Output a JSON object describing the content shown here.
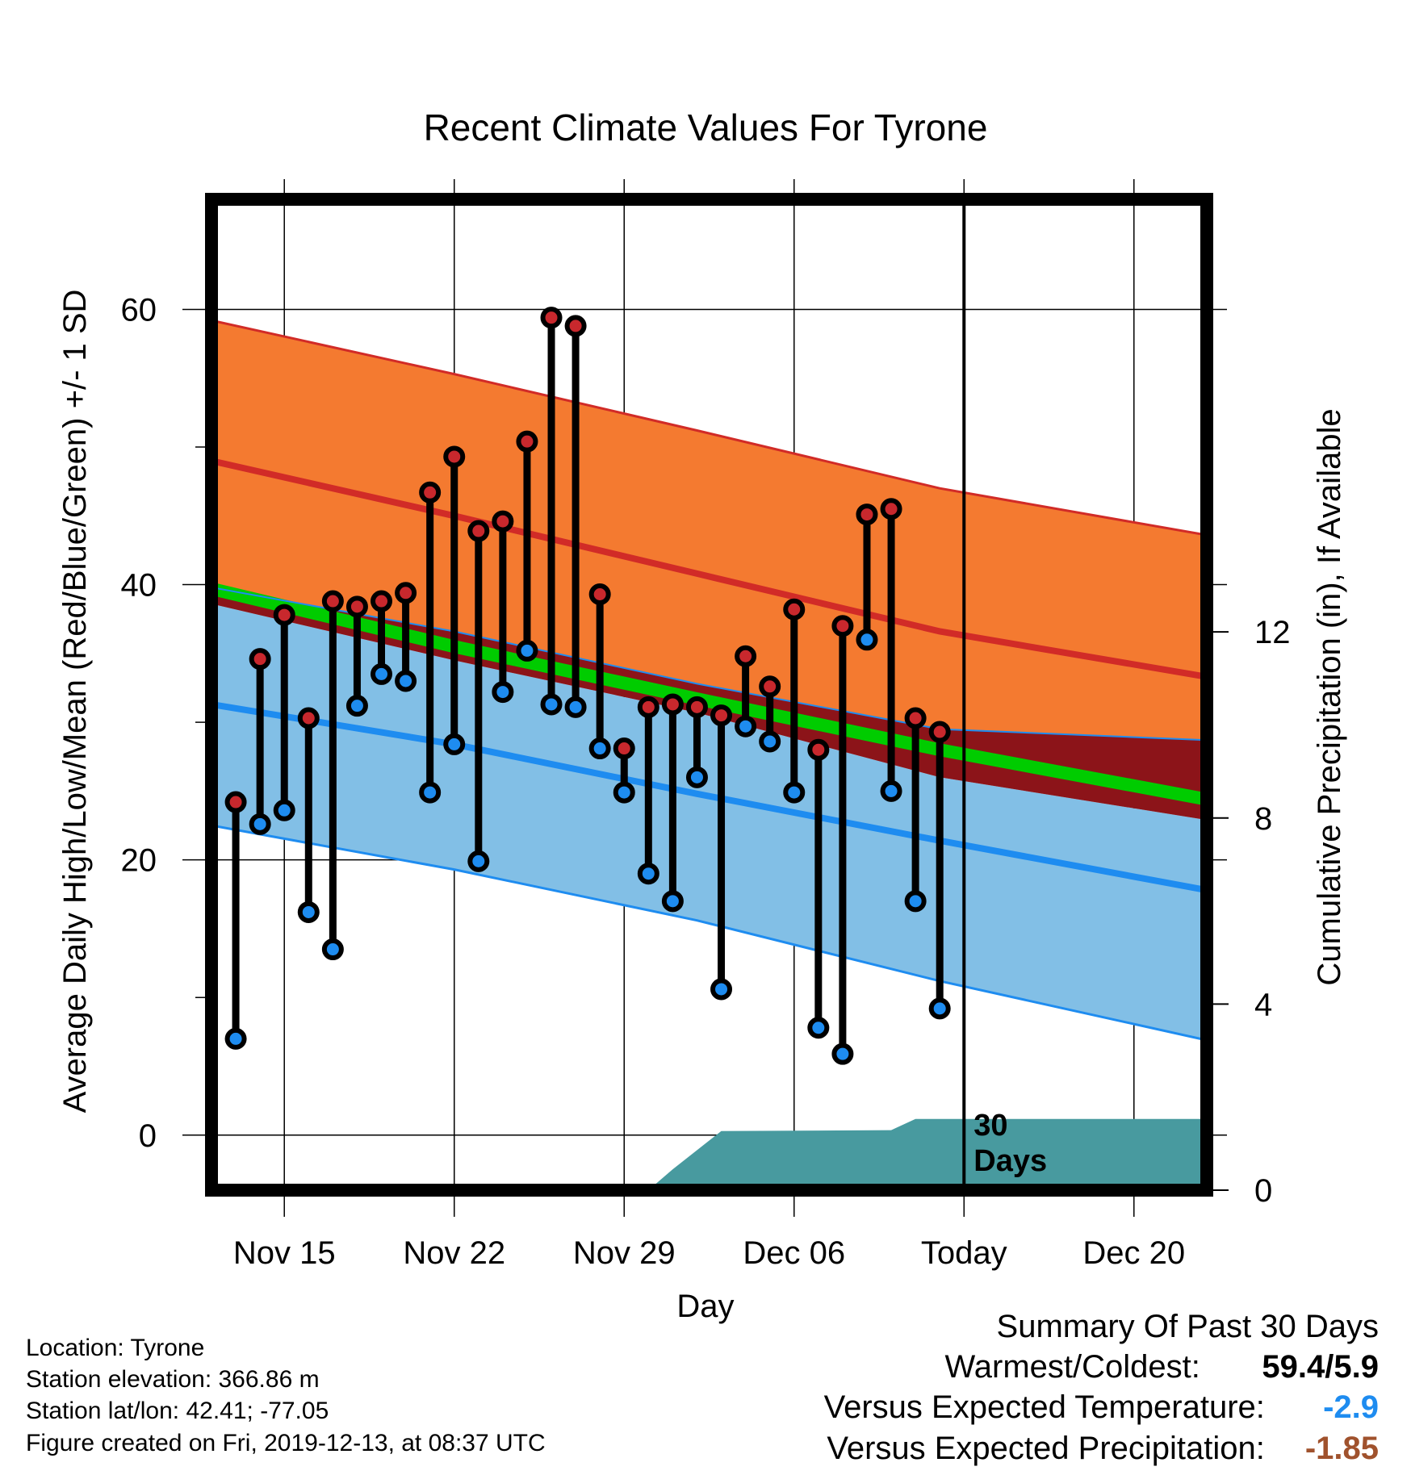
{
  "chart_data": {
    "type": "line",
    "title": "Recent Climate Values For Tyrone",
    "xlabel": "Day",
    "ylabel": "Average Daily High/Low/Mean (Red/Blue/Green) +/- 1 SD",
    "y2label": "Cumulative Precipitation (in), If Available",
    "x_range": [
      "2019-11-12",
      "2019-12-23"
    ],
    "ylim": [
      -4,
      68
    ],
    "y2lim": [
      0,
      21.3
    ],
    "x_ticks": [
      {
        "date": "2019-11-15",
        "label": "Nov 15"
      },
      {
        "date": "2019-11-22",
        "label": "Nov 22"
      },
      {
        "date": "2019-11-29",
        "label": "Nov 29"
      },
      {
        "date": "2019-12-06",
        "label": "Dec 06"
      },
      {
        "date": "2019-12-13",
        "label": "Today"
      },
      {
        "date": "2019-12-20",
        "label": "Dec 20"
      }
    ],
    "y_ticks": [
      0,
      20,
      40,
      60
    ],
    "y_minor_ticks": [
      10,
      30,
      50
    ],
    "y2_ticks": [
      0,
      4,
      8,
      12
    ],
    "grid": true,
    "today_marker": {
      "date": "2019-12-13",
      "label_line1": "30",
      "label_line2": "Days"
    },
    "normals": {
      "dates": [
        "2019-11-12",
        "2019-11-22",
        "2019-12-02",
        "2019-12-12",
        "2019-12-23"
      ],
      "high_mean": [
        49.0,
        45.0,
        40.8,
        36.6,
        33.3
      ],
      "high_sd_upper": [
        59.2,
        55.3,
        51.2,
        47.0,
        43.6
      ],
      "high_sd_lower": [
        39.8,
        36.6,
        32.8,
        29.5,
        28.7
      ],
      "avg_mean": [
        39.7,
        35.5,
        31.7,
        28.0,
        24.4
      ],
      "low_mean": [
        31.3,
        28.4,
        24.8,
        21.4,
        17.8
      ],
      "low_sd_upper": [
        38.6,
        34.5,
        30.7,
        26.0,
        22.9
      ],
      "low_sd_lower": [
        22.5,
        19.3,
        15.6,
        11.2,
        6.9
      ]
    },
    "series": [
      {
        "name": "High",
        "dates": [
          "2019-11-13",
          "2019-11-14",
          "2019-11-15",
          "2019-11-16",
          "2019-11-17",
          "2019-11-18",
          "2019-11-19",
          "2019-11-20",
          "2019-11-21",
          "2019-11-22",
          "2019-11-23",
          "2019-11-24",
          "2019-11-25",
          "2019-11-26",
          "2019-11-27",
          "2019-11-28",
          "2019-11-29",
          "2019-11-30",
          "2019-12-01",
          "2019-12-02",
          "2019-12-03",
          "2019-12-04",
          "2019-12-05",
          "2019-12-06",
          "2019-12-07",
          "2019-12-08",
          "2019-12-09",
          "2019-12-10",
          "2019-12-11",
          "2019-12-12"
        ],
        "values": [
          24.2,
          34.6,
          37.8,
          30.3,
          38.8,
          38.4,
          38.8,
          39.4,
          46.7,
          49.3,
          43.9,
          44.6,
          50.4,
          59.4,
          58.8,
          39.3,
          28.1,
          31.1,
          31.3,
          31.1,
          30.5,
          34.8,
          32.6,
          38.2,
          28.0,
          37.0,
          45.1,
          45.5,
          30.3,
          29.3
        ]
      },
      {
        "name": "Low",
        "dates": [
          "2019-11-13",
          "2019-11-14",
          "2019-11-15",
          "2019-11-16",
          "2019-11-17",
          "2019-11-18",
          "2019-11-19",
          "2019-11-20",
          "2019-11-21",
          "2019-11-22",
          "2019-11-23",
          "2019-11-24",
          "2019-11-25",
          "2019-11-26",
          "2019-11-27",
          "2019-11-28",
          "2019-11-29",
          "2019-11-30",
          "2019-12-01",
          "2019-12-02",
          "2019-12-03",
          "2019-12-04",
          "2019-12-05",
          "2019-12-06",
          "2019-12-07",
          "2019-12-08",
          "2019-12-09",
          "2019-12-10",
          "2019-12-11",
          "2019-12-12"
        ],
        "values": [
          7.0,
          22.6,
          23.6,
          16.2,
          13.5,
          31.2,
          33.5,
          33.0,
          24.9,
          28.4,
          19.9,
          32.2,
          35.2,
          31.3,
          31.1,
          28.1,
          24.9,
          19.0,
          17.0,
          26.0,
          10.6,
          29.7,
          28.6,
          24.9,
          7.8,
          5.9,
          36.0,
          25.0,
          17.0,
          9.2
        ]
      },
      {
        "name": "Cumulative Precipitation",
        "dates": [
          "2019-11-12",
          "2019-11-30",
          "2019-12-01",
          "2019-12-03",
          "2019-12-10",
          "2019-12-11",
          "2019-12-23"
        ],
        "values": [
          0,
          0,
          0.45,
          1.27,
          1.29,
          1.53,
          1.53
        ]
      }
    ],
    "colors": {
      "high_band": "#f47a30",
      "high_line": "#d12b27",
      "overlap_band": "#8c1419",
      "mean_band": "#00cc00",
      "low_band": "#82bfe6",
      "low_line": "#1e8cf0",
      "precip": "#489a9f",
      "high_dot": "#c8282d",
      "low_dot": "#1e8cf0"
    }
  },
  "info": {
    "location": "Location: Tyrone",
    "elevation": "Station elevation: 366.86 m",
    "latlon": "Station lat/lon: 42.41; -77.05",
    "created": "Figure created on Fri, 2019-12-13, at 08:37 UTC"
  },
  "summary": {
    "heading": "Summary Of Past 30 Days",
    "warmest_coldest_label": "Warmest/Coldest:",
    "warmest_coldest_value": "59.4/5.9",
    "temp_label": "Versus Expected Temperature:",
    "temp_value": "-2.9",
    "temp_color": "#1e8cf0",
    "precip_label": "Versus Expected Precipitation:",
    "precip_value": "-1.85",
    "precip_color": "#a0522d"
  }
}
